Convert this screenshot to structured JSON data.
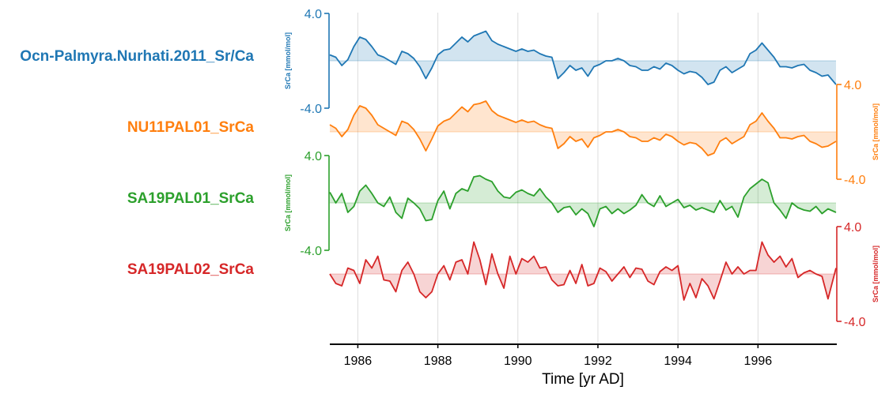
{
  "chart_data": {
    "type": "line",
    "xlabel": "Time [yr AD]",
    "xlim": [
      1985.3,
      1997.95
    ],
    "xticks": [
      1986,
      1988,
      1990,
      1992,
      1994,
      1996
    ],
    "xtick_labels": [
      "1986",
      "1988",
      "1990",
      "1992",
      "1994",
      "1996"
    ],
    "grid_x": true,
    "series": [
      {
        "name": "Ocn-Palmyra.Nurhati.2011_Sr/Ca",
        "color": "#1f77b4",
        "fill_color": "#1f77b4",
        "ylabel": "SrCa [mmol/mol]",
        "ylim": [
          -4.0,
          4.0
        ],
        "ytick_labels": [
          "4.0",
          "-4.0"
        ],
        "axis_side": "left",
        "x": [
          1985.3,
          1985.45,
          1985.6,
          1985.75,
          1985.9,
          1986.05,
          1986.2,
          1986.35,
          1986.5,
          1986.65,
          1986.8,
          1986.95,
          1987.1,
          1987.25,
          1987.4,
          1987.55,
          1987.7,
          1987.85,
          1988.0,
          1988.15,
          1988.3,
          1988.45,
          1988.6,
          1988.75,
          1988.9,
          1989.05,
          1989.2,
          1989.35,
          1989.5,
          1989.65,
          1989.8,
          1989.95,
          1990.1,
          1990.25,
          1990.4,
          1990.55,
          1990.7,
          1990.85,
          1991.0,
          1991.15,
          1991.3,
          1991.45,
          1991.6,
          1991.75,
          1991.9,
          1992.05,
          1992.2,
          1992.35,
          1992.5,
          1992.65,
          1992.8,
          1992.95,
          1993.1,
          1993.25,
          1993.4,
          1993.55,
          1993.7,
          1993.85,
          1994.0,
          1994.15,
          1994.3,
          1994.45,
          1994.6,
          1994.75,
          1994.9,
          1995.05,
          1995.2,
          1995.35,
          1995.5,
          1995.65,
          1995.8,
          1995.95,
          1996.1,
          1996.25,
          1996.4,
          1996.55,
          1996.7,
          1996.85,
          1997.0,
          1997.15,
          1997.3,
          1997.45,
          1997.6,
          1997.75,
          1997.95
        ],
        "y": [
          0.5,
          0.3,
          -0.4,
          0.1,
          1.2,
          2.0,
          1.8,
          1.2,
          0.5,
          0.3,
          0.0,
          -0.3,
          0.8,
          0.6,
          0.2,
          -0.5,
          -1.5,
          -0.6,
          0.5,
          0.9,
          1.0,
          1.5,
          2.0,
          1.6,
          2.1,
          2.3,
          2.5,
          1.7,
          1.4,
          1.2,
          1.0,
          0.8,
          1.0,
          0.8,
          0.9,
          0.6,
          0.4,
          0.3,
          -1.5,
          -1.0,
          -0.4,
          -0.8,
          -0.6,
          -1.3,
          -0.5,
          -0.3,
          0.0,
          0.0,
          0.2,
          0.0,
          -0.4,
          -0.5,
          -0.8,
          -0.8,
          -0.5,
          -0.7,
          -0.2,
          -0.4,
          -0.8,
          -1.1,
          -0.9,
          -1.0,
          -1.4,
          -2.0,
          -1.8,
          -0.8,
          -0.5,
          -1.0,
          -0.7,
          -0.4,
          0.6,
          0.9,
          1.5,
          0.9,
          0.3,
          -0.5,
          -0.5,
          -0.6,
          -0.4,
          -0.3,
          -0.8,
          -1.0,
          -1.3,
          -1.2,
          -2.0
        ]
      },
      {
        "name": "NU11PAL01_SrCa",
        "color": "#ff7f0e",
        "fill_color": "#ff7f0e",
        "ylabel": "SrCa [mmol/mol]",
        "ylim": [
          -4.0,
          4.0
        ],
        "ytick_labels": [
          "4.0",
          "-4.0"
        ],
        "axis_side": "right",
        "x": [
          1985.3,
          1985.45,
          1985.6,
          1985.75,
          1985.9,
          1986.05,
          1986.2,
          1986.35,
          1986.5,
          1986.65,
          1986.8,
          1986.95,
          1987.1,
          1987.25,
          1987.4,
          1987.55,
          1987.7,
          1987.85,
          1988.0,
          1988.15,
          1988.3,
          1988.45,
          1988.6,
          1988.75,
          1988.9,
          1989.05,
          1989.2,
          1989.35,
          1989.5,
          1989.65,
          1989.8,
          1989.95,
          1990.1,
          1990.25,
          1990.4,
          1990.55,
          1990.7,
          1990.85,
          1991.0,
          1991.15,
          1991.3,
          1991.45,
          1991.6,
          1991.75,
          1991.9,
          1992.05,
          1992.2,
          1992.35,
          1992.5,
          1992.65,
          1992.8,
          1992.95,
          1993.1,
          1993.25,
          1993.4,
          1993.55,
          1993.7,
          1993.85,
          1994.0,
          1994.15,
          1994.3,
          1994.45,
          1994.6,
          1994.75,
          1994.9,
          1995.05,
          1995.2,
          1995.35,
          1995.5,
          1995.65,
          1995.8,
          1995.95,
          1996.1,
          1996.25,
          1996.4,
          1996.55,
          1996.7,
          1996.85,
          1997.0,
          1997.15,
          1997.3,
          1997.45,
          1997.6,
          1997.75,
          1997.95
        ],
        "y": [
          0.6,
          0.3,
          -0.4,
          0.2,
          1.4,
          2.2,
          2.0,
          1.4,
          0.6,
          0.3,
          0.0,
          -0.3,
          0.9,
          0.7,
          0.2,
          -0.6,
          -1.6,
          -0.6,
          0.5,
          0.9,
          1.1,
          1.6,
          2.1,
          1.7,
          2.3,
          2.4,
          2.6,
          1.8,
          1.4,
          1.2,
          1.0,
          0.8,
          1.0,
          0.8,
          0.9,
          0.6,
          0.4,
          0.3,
          -1.4,
          -1.0,
          -0.4,
          -0.8,
          -0.6,
          -1.3,
          -0.5,
          -0.3,
          0.0,
          0.0,
          0.2,
          0.0,
          -0.4,
          -0.5,
          -0.8,
          -0.8,
          -0.5,
          -0.7,
          -0.2,
          -0.4,
          -0.8,
          -1.1,
          -0.9,
          -1.0,
          -1.4,
          -2.0,
          -1.8,
          -0.8,
          -0.5,
          -1.0,
          -0.7,
          -0.4,
          0.6,
          0.9,
          1.6,
          0.9,
          0.3,
          -0.5,
          -0.5,
          -0.6,
          -0.4,
          -0.3,
          -0.8,
          -1.0,
          -1.3,
          -1.2,
          -0.8
        ]
      },
      {
        "name": "SA19PAL01_SrCa",
        "color": "#2ca02c",
        "fill_color": "#2ca02c",
        "ylabel": "SrCa [mmol/mol]",
        "ylim": [
          -4.0,
          4.0
        ],
        "ytick_labels": [
          "4.0",
          "-4.0"
        ],
        "axis_side": "left",
        "x": [
          1985.3,
          1985.45,
          1985.6,
          1985.75,
          1985.9,
          1986.05,
          1986.2,
          1986.35,
          1986.5,
          1986.65,
          1986.8,
          1986.95,
          1987.1,
          1987.25,
          1987.4,
          1987.55,
          1987.7,
          1987.85,
          1988.0,
          1988.15,
          1988.3,
          1988.45,
          1988.6,
          1988.75,
          1988.9,
          1989.05,
          1989.2,
          1989.35,
          1989.5,
          1989.65,
          1989.8,
          1989.95,
          1990.1,
          1990.25,
          1990.4,
          1990.55,
          1990.7,
          1990.85,
          1991.0,
          1991.15,
          1991.3,
          1991.45,
          1991.6,
          1991.75,
          1991.9,
          1992.05,
          1992.2,
          1992.35,
          1992.5,
          1992.65,
          1992.8,
          1992.95,
          1993.1,
          1993.25,
          1993.4,
          1993.55,
          1993.7,
          1993.85,
          1994.0,
          1994.15,
          1994.3,
          1994.45,
          1994.6,
          1994.75,
          1994.9,
          1995.05,
          1995.2,
          1995.35,
          1995.5,
          1995.65,
          1995.8,
          1995.95,
          1996.1,
          1996.25,
          1996.4,
          1996.55,
          1996.7,
          1996.85,
          1997.0,
          1997.15,
          1997.3,
          1997.45,
          1997.6,
          1997.75,
          1997.95
        ],
        "y": [
          0.9,
          0.0,
          0.8,
          -0.8,
          -0.3,
          1.0,
          1.5,
          0.8,
          0.0,
          -0.3,
          0.5,
          -0.8,
          -1.3,
          0.4,
          0.0,
          -0.5,
          -1.5,
          -1.4,
          0.2,
          1.0,
          -0.5,
          0.8,
          1.2,
          1.0,
          2.2,
          2.3,
          2.0,
          1.8,
          1.0,
          0.5,
          0.4,
          0.9,
          1.1,
          0.8,
          0.6,
          1.2,
          0.5,
          0.0,
          -0.8,
          -0.4,
          -0.3,
          -1.0,
          -0.5,
          -0.9,
          -2.0,
          -0.5,
          -0.3,
          -0.9,
          -0.5,
          -0.9,
          -0.6,
          -0.2,
          0.7,
          0.0,
          -0.3,
          0.6,
          -0.3,
          0.0,
          0.3,
          -0.4,
          -0.2,
          -0.6,
          -0.4,
          -0.6,
          -0.8,
          0.2,
          -0.6,
          -0.3,
          -1.2,
          0.5,
          1.2,
          1.6,
          2.0,
          1.7,
          0.0,
          -0.6,
          -1.3,
          0.0,
          -0.4,
          -0.6,
          -0.7,
          -0.3,
          -0.9,
          -0.5,
          -0.8
        ]
      },
      {
        "name": "SA19PAL02_SrCa",
        "color": "#d62728",
        "fill_color": "#d62728",
        "ylabel": "SrCa [mmol/mol]",
        "ylim": [
          -4.0,
          4.0
        ],
        "ytick_labels": [
          "4.0",
          "-4.0"
        ],
        "axis_side": "right",
        "x": [
          1985.3,
          1985.45,
          1985.6,
          1985.75,
          1985.9,
          1986.05,
          1986.2,
          1986.35,
          1986.5,
          1986.65,
          1986.8,
          1986.95,
          1987.1,
          1987.25,
          1987.4,
          1987.55,
          1987.7,
          1987.85,
          1988.0,
          1988.15,
          1988.3,
          1988.45,
          1988.6,
          1988.75,
          1988.9,
          1989.05,
          1989.2,
          1989.35,
          1989.5,
          1989.65,
          1989.8,
          1989.95,
          1990.1,
          1990.25,
          1990.4,
          1990.55,
          1990.7,
          1990.85,
          1991.0,
          1991.15,
          1991.3,
          1991.45,
          1991.6,
          1991.75,
          1991.9,
          1992.05,
          1992.2,
          1992.35,
          1992.5,
          1992.65,
          1992.8,
          1992.95,
          1993.1,
          1993.25,
          1993.4,
          1993.55,
          1993.7,
          1993.85,
          1994.0,
          1994.15,
          1994.3,
          1994.45,
          1994.6,
          1994.75,
          1994.9,
          1995.05,
          1995.2,
          1995.35,
          1995.5,
          1995.65,
          1995.8,
          1995.95,
          1996.1,
          1996.25,
          1996.4,
          1996.55,
          1996.7,
          1996.85,
          1997.0,
          1997.15,
          1997.3,
          1997.45,
          1997.6,
          1997.75,
          1997.95
        ],
        "y": [
          0.0,
          -0.8,
          -1.0,
          0.5,
          0.3,
          -0.8,
          1.2,
          0.5,
          1.5,
          -0.5,
          -0.6,
          -1.5,
          0.3,
          1.0,
          0.0,
          -1.5,
          -2.0,
          -1.5,
          0.0,
          0.7,
          -0.5,
          1.0,
          1.2,
          0.0,
          2.7,
          1.2,
          -0.9,
          1.7,
          0.0,
          -1.2,
          1.5,
          0.0,
          1.3,
          1.0,
          1.5,
          0.5,
          0.6,
          -0.5,
          -1.0,
          -0.9,
          0.3,
          -0.8,
          0.8,
          -1.0,
          -0.8,
          0.5,
          0.2,
          -0.6,
          0.0,
          0.6,
          -0.3,
          0.5,
          0.4,
          -0.6,
          -0.9,
          0.2,
          0.6,
          0.3,
          0.7,
          -2.2,
          -0.8,
          -2.0,
          -0.4,
          -1.0,
          -2.1,
          -0.6,
          1.0,
          0.0,
          0.6,
          0.0,
          0.3,
          0.3,
          2.7,
          1.6,
          1.0,
          1.5,
          0.6,
          1.3,
          -0.3,
          0.1,
          0.3,
          0.0,
          -0.2,
          -2.1,
          0.5
        ]
      }
    ]
  }
}
